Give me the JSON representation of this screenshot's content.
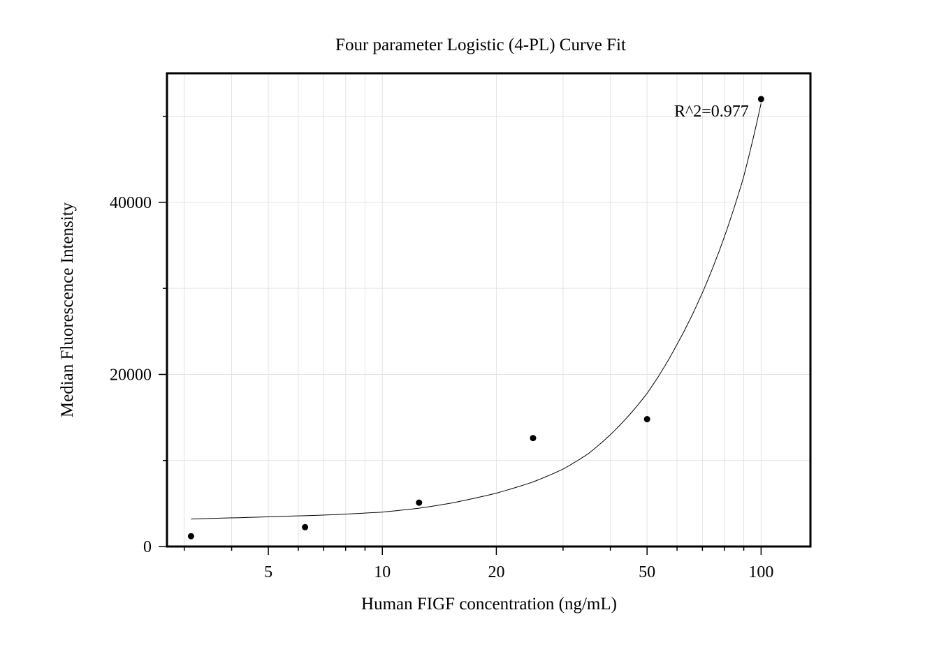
{
  "chart_data": {
    "type": "scatter",
    "title": "Four parameter Logistic (4-PL) Curve Fit",
    "xlabel": "Human FIGF concentration (ng/mL)",
    "ylabel": "Median Fluorescence Intensity",
    "x_scale": "log",
    "xlim": [
      2.7,
      135
    ],
    "ylim": [
      0,
      55000
    ],
    "x_ticks": [
      {
        "value": 5,
        "label": "5"
      },
      {
        "value": 10,
        "label": "10"
      },
      {
        "value": 20,
        "label": "20"
      },
      {
        "value": 50,
        "label": "50"
      },
      {
        "value": 100,
        "label": "100"
      }
    ],
    "y_ticks": [
      {
        "value": 0,
        "label": "0"
      },
      {
        "value": 20000,
        "label": "20000"
      },
      {
        "value": 40000,
        "label": "40000"
      }
    ],
    "y_minor_ticks": [
      10000,
      30000,
      50000
    ],
    "grid": true,
    "series": [
      {
        "points": [
          {
            "x": 3.125,
            "y": 1200
          },
          {
            "x": 6.25,
            "y": 2250
          },
          {
            "x": 12.5,
            "y": 5100
          },
          {
            "x": 25,
            "y": 12600
          },
          {
            "x": 50,
            "y": 14800
          },
          {
            "x": 100,
            "y": 52000
          }
        ],
        "color": "#000000"
      }
    ],
    "fit_curve": {
      "model": "4-PL",
      "samples": [
        {
          "x": 3.125,
          "y": 3200
        },
        {
          "x": 5,
          "y": 3450
        },
        {
          "x": 7.5,
          "y": 3700
        },
        {
          "x": 10,
          "y": 4000
        },
        {
          "x": 12.5,
          "y": 4450
        },
        {
          "x": 15,
          "y": 5000
        },
        {
          "x": 20,
          "y": 6200
        },
        {
          "x": 25,
          "y": 7500
        },
        {
          "x": 30,
          "y": 9000
        },
        {
          "x": 35,
          "y": 10800
        },
        {
          "x": 40,
          "y": 13000
        },
        {
          "x": 50,
          "y": 17800
        },
        {
          "x": 60,
          "y": 23500
        },
        {
          "x": 70,
          "y": 29500
        },
        {
          "x": 80,
          "y": 36000
        },
        {
          "x": 90,
          "y": 43000
        },
        {
          "x": 100,
          "y": 51500
        }
      ],
      "color": "#000000"
    },
    "annotations": [
      {
        "text": "R^2=0.977"
      }
    ]
  }
}
